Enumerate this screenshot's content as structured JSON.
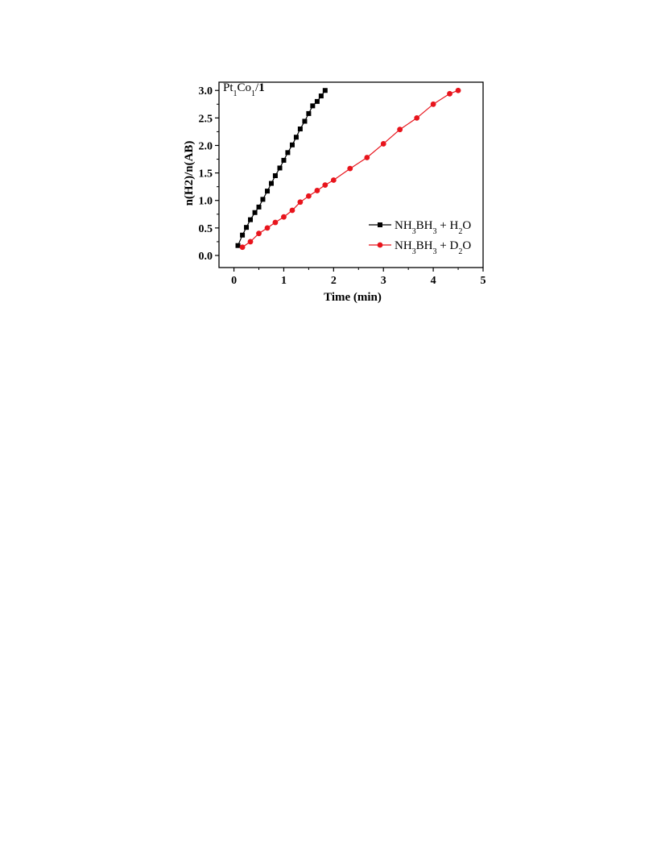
{
  "chart_data": {
    "type": "line",
    "annotation": {
      "parts": [
        {
          "t": "Pt"
        },
        {
          "t": "1",
          "sub": true
        },
        {
          "t": "Co"
        },
        {
          "t": "1",
          "sub": true
        },
        {
          "t": "/"
        },
        {
          "t": "1",
          "bold": true
        }
      ]
    },
    "xlabel": "Time (min)",
    "ylabel": "n(H2)/n(AB)",
    "xlim": [
      -0.3,
      5.0
    ],
    "ylim": [
      -0.22,
      3.15
    ],
    "xticks": [
      0,
      1,
      2,
      3,
      4,
      5
    ],
    "xtick_labels": [
      "0",
      "1",
      "2",
      "3",
      "4",
      "5"
    ],
    "yticks": [
      0.0,
      0.5,
      1.0,
      1.5,
      2.0,
      2.5,
      3.0
    ],
    "ytick_labels": [
      "0.0",
      "0.5",
      "1.0",
      "1.5",
      "2.0",
      "2.5",
      "3.0"
    ],
    "grid": false,
    "legend_position": "center-right",
    "series": [
      {
        "legend": [
          {
            "t": "NH"
          },
          {
            "t": "3",
            "sub": true
          },
          {
            "t": "BH"
          },
          {
            "t": "3",
            "sub": true
          },
          {
            "t": " + H"
          },
          {
            "t": "2",
            "sub": true
          },
          {
            "t": "O"
          }
        ],
        "color": "#000000",
        "marker": "square",
        "x": [
          0.08,
          0.17,
          0.25,
          0.33,
          0.42,
          0.5,
          0.58,
          0.67,
          0.75,
          0.83,
          0.92,
          1.0,
          1.08,
          1.17,
          1.25,
          1.33,
          1.42,
          1.5,
          1.58,
          1.67,
          1.75,
          1.83
        ],
        "y": [
          0.18,
          0.37,
          0.51,
          0.65,
          0.78,
          0.88,
          1.02,
          1.17,
          1.31,
          1.45,
          1.59,
          1.73,
          1.87,
          2.01,
          2.15,
          2.3,
          2.44,
          2.58,
          2.72,
          2.8,
          2.9,
          3.0
        ]
      },
      {
        "legend": [
          {
            "t": "NH"
          },
          {
            "t": "3",
            "sub": true
          },
          {
            "t": "BH"
          },
          {
            "t": "3",
            "sub": true
          },
          {
            "t": " + D"
          },
          {
            "t": "2",
            "sub": true
          },
          {
            "t": "O"
          }
        ],
        "color": "#e8141c",
        "marker": "circle",
        "x": [
          0.17,
          0.33,
          0.5,
          0.67,
          0.83,
          1.0,
          1.17,
          1.33,
          1.5,
          1.67,
          1.83,
          2.0,
          2.33,
          2.67,
          3.0,
          3.33,
          3.67,
          4.0,
          4.33,
          4.5
        ],
        "y": [
          0.15,
          0.25,
          0.4,
          0.5,
          0.6,
          0.7,
          0.82,
          0.97,
          1.08,
          1.18,
          1.28,
          1.37,
          1.58,
          1.78,
          2.03,
          2.29,
          2.5,
          2.75,
          2.94,
          3.0
        ]
      }
    ]
  }
}
